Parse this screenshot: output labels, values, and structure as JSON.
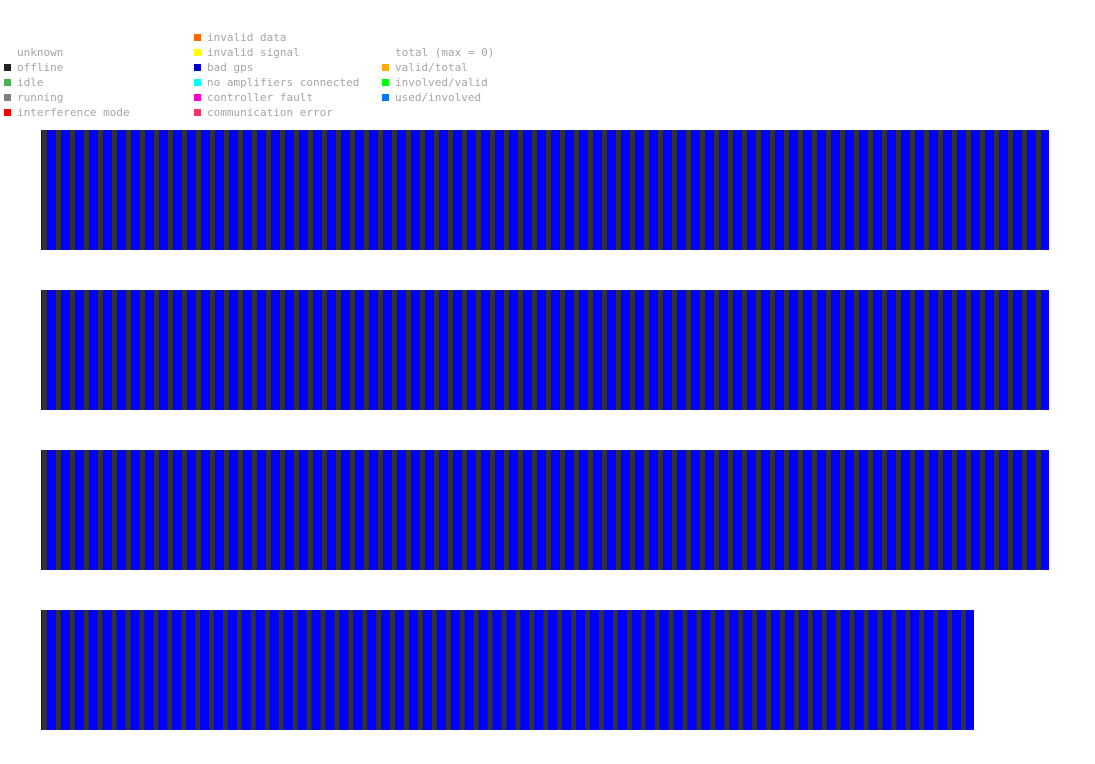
{
  "legend": {
    "columns": [
      [
        {
          "label": "",
          "color": ""
        },
        {
          "label": "unknown",
          "color": ""
        },
        {
          "label": "offline",
          "color": "#222222"
        },
        {
          "label": "idle",
          "color": "#4caf50"
        },
        {
          "label": "running",
          "color": "#808080"
        },
        {
          "label": "interference mode",
          "color": "#ff0000"
        }
      ],
      [
        {
          "label": "invalid data",
          "color": "#ff6600"
        },
        {
          "label": "invalid signal",
          "color": "#ffff00"
        },
        {
          "label": "bad gps",
          "color": "#0000cc"
        },
        {
          "label": "no amplifiers connected",
          "color": "#00ffff"
        },
        {
          "label": "controller fault",
          "color": "#ff00cc"
        },
        {
          "label": "communication error",
          "color": "#ff3366"
        }
      ],
      [
        {
          "label": "",
          "color": ""
        },
        {
          "label": "total (max = 0)",
          "color": ""
        },
        {
          "label": "valid/total",
          "color": "#ffaa00"
        },
        {
          "label": "involved/valid",
          "color": "#00ff00"
        },
        {
          "label": "used/involved",
          "color": "#0077ff"
        },
        {
          "label": "",
          "color": ""
        }
      ]
    ]
  },
  "colors": {
    "bad_gps": "#0000ff",
    "offline": "#333333"
  },
  "status_rows": [
    {
      "cells": 72,
      "pattern": "offline/bad gps alternating"
    },
    {
      "cells": 72,
      "pattern": "offline/bad gps alternating"
    },
    {
      "cells": 72,
      "pattern": "offline/bad gps alternating"
    },
    {
      "cells": 67,
      "pattern": "offline/bad gps alternating"
    }
  ]
}
